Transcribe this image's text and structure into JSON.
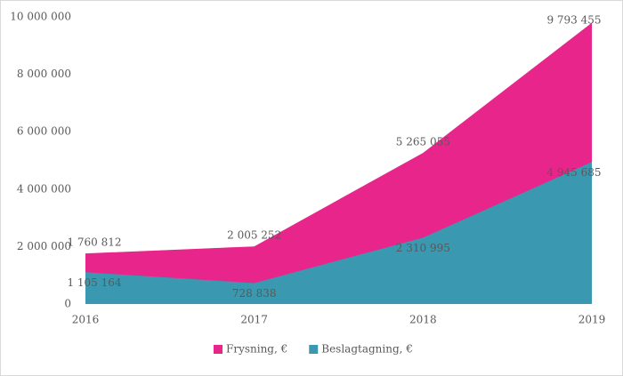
{
  "chart_data": {
    "type": "area",
    "categories": [
      "2016",
      "2017",
      "2018",
      "2019"
    ],
    "series": [
      {
        "name": "Frysning, €",
        "color": "#e8258a",
        "values": [
          1760812,
          2005252,
          5265055,
          9793455
        ],
        "value_labels": [
          "1 760 812",
          "2 005 252",
          "5 265 055",
          "9 793 455"
        ]
      },
      {
        "name": "Beslagtagning, €",
        "color": "#3a98b0",
        "values": [
          1105164,
          728838,
          2310995,
          4945685
        ],
        "value_labels": [
          "1 105 164",
          "728 838",
          "2 310 995",
          "4 945 685"
        ]
      }
    ],
    "ylim": [
      0,
      10000000
    ],
    "yticks": [
      0,
      {
        "value": 2000000,
        "label": "2 000 000"
      },
      {
        "value": 4000000,
        "label": "4 000 000"
      },
      {
        "value": 6000000,
        "label": "6 000 000"
      },
      {
        "value": 8000000,
        "label": "8 000 000"
      },
      {
        "value": 10000000,
        "label": "10 000 000"
      }
    ],
    "grid": false,
    "legend": "bottom"
  }
}
